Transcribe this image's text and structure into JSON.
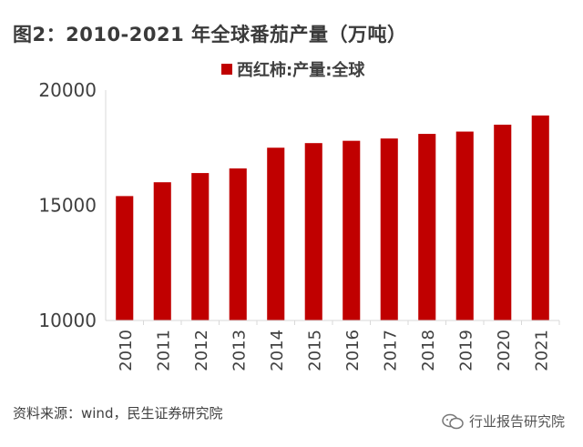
{
  "header": {
    "title": "图2：2010-2021 年全球番茄产量（万吨）"
  },
  "footer": {
    "source": "资料来源：wind，民生证券研究院",
    "watermark": "行业报告研究院"
  },
  "colors": {
    "bar": "#c00000",
    "axis": "#d9d9d9",
    "title_rule": "#c00000"
  },
  "chart_data": {
    "type": "bar",
    "title": "",
    "xlabel": "",
    "ylabel": "",
    "categories": [
      "2010",
      "2011",
      "2012",
      "2013",
      "2014",
      "2015",
      "2016",
      "2017",
      "2018",
      "2019",
      "2020",
      "2021"
    ],
    "series": [
      {
        "name": "西红柿:产量:全球",
        "values": [
          15400,
          16000,
          16400,
          16600,
          17500,
          17700,
          17800,
          17900,
          18100,
          18200,
          18500,
          18900
        ]
      }
    ],
    "ylim": [
      10000,
      20000
    ],
    "yticks": [
      "10000",
      "15000",
      "20000"
    ],
    "legend": "top-center",
    "grid": false
  }
}
